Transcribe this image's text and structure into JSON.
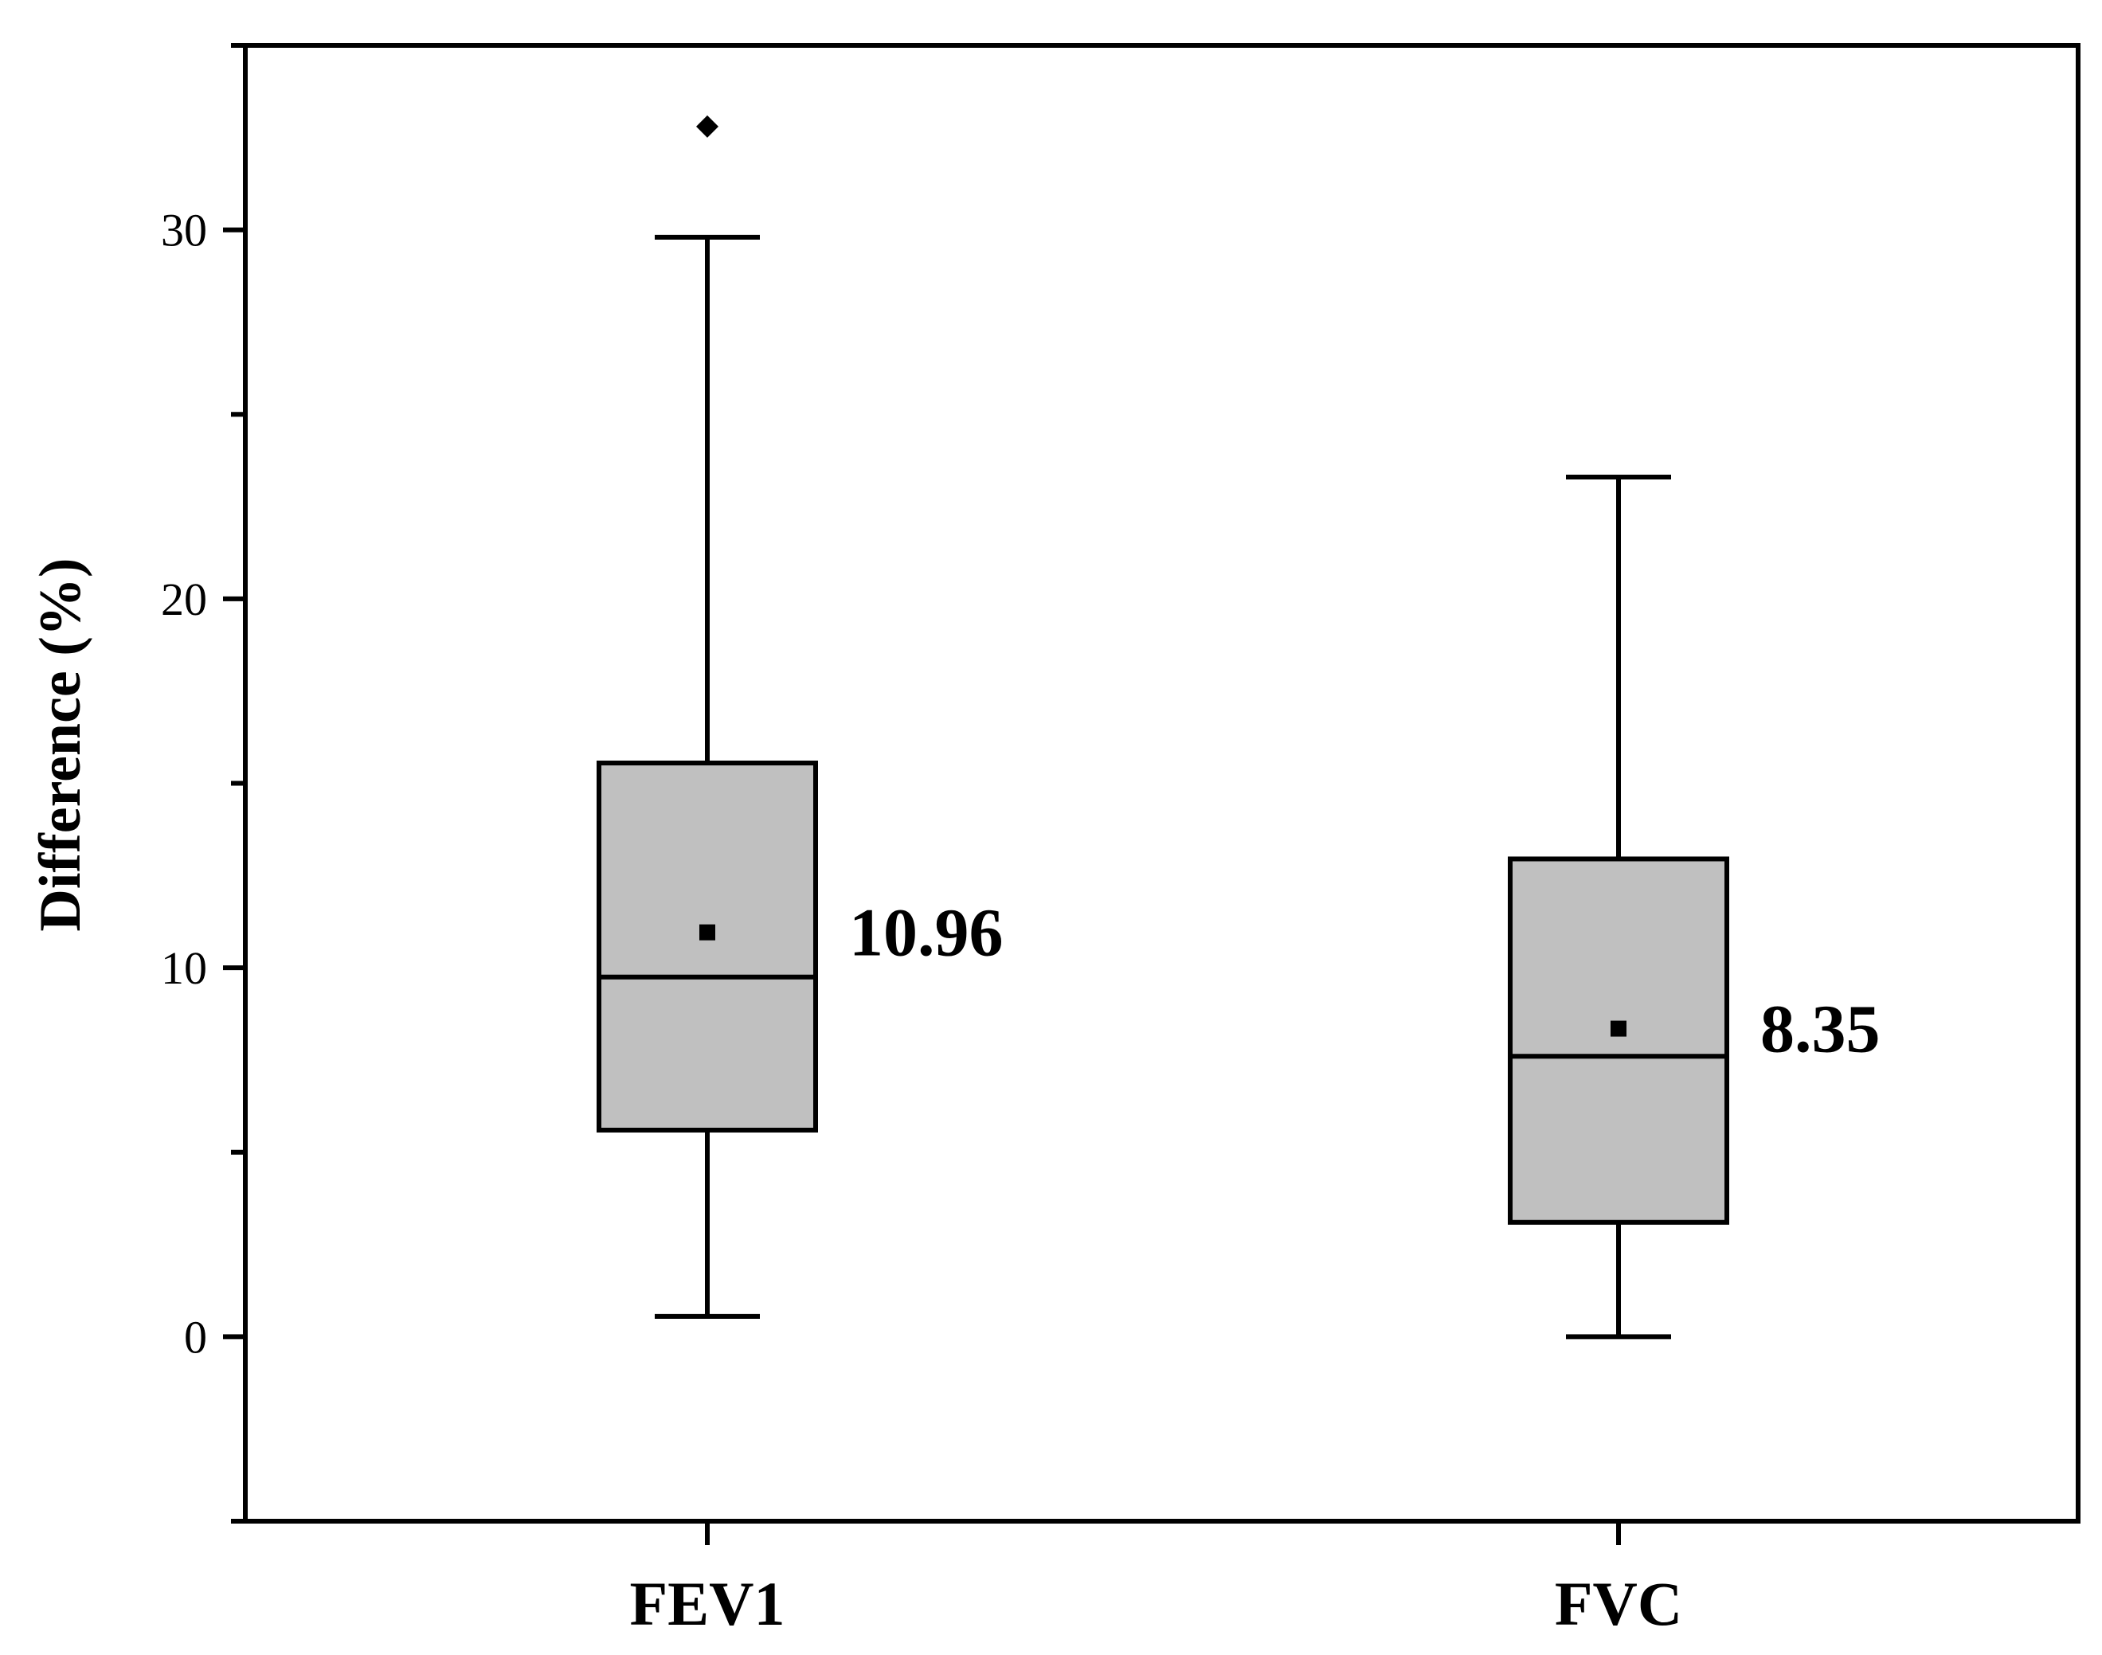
{
  "chart_data": {
    "type": "box",
    "title": "",
    "xlabel": "",
    "ylabel": "Difference (%)",
    "ylim": [
      -5,
      35
    ],
    "yticks": [
      0,
      10,
      20,
      30
    ],
    "categories": [
      "FEV1",
      "FVC"
    ],
    "boxes": [
      {
        "category": "FEV1",
        "whisker_low": 0.55,
        "q1": 5.6,
        "median": 9.75,
        "q3": 15.55,
        "whisker_high": 29.8,
        "mean": 10.96,
        "mean_label": "10.96",
        "outliers": [
          32.8
        ]
      },
      {
        "category": "FVC",
        "whisker_low": 0.0,
        "q1": 3.1,
        "median": 7.6,
        "q3": 12.95,
        "whisker_high": 23.3,
        "mean": 8.35,
        "mean_label": "8.35",
        "outliers": []
      }
    ],
    "colors": {
      "box_fill": "#c0c0c0",
      "stroke": "#000000"
    }
  }
}
